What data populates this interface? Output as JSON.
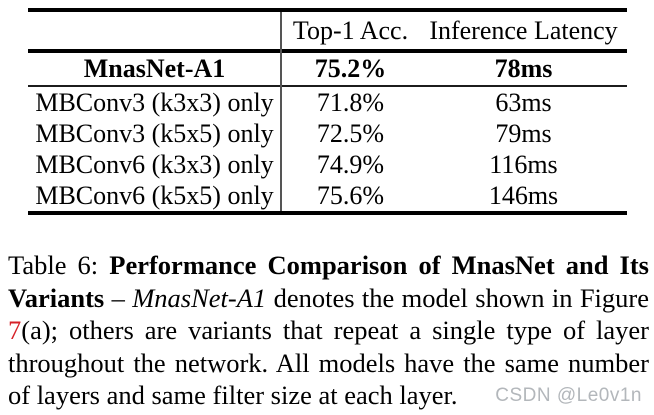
{
  "table": {
    "col_headers": [
      "",
      "Top-1 Acc.",
      "Inference Latency"
    ],
    "highlight_row": {
      "model": "MnasNet-A1",
      "top1_acc": "75.2%",
      "latency": "78ms"
    },
    "variant_rows": [
      {
        "model": "MBConv3 (k3x3) only",
        "top1_acc": "71.8%",
        "latency": "63ms"
      },
      {
        "model": "MBConv3 (k5x5) only",
        "top1_acc": "72.5%",
        "latency": "79ms"
      },
      {
        "model": "MBConv6 (k3x3) only",
        "top1_acc": "74.9%",
        "latency": "116ms"
      },
      {
        "model": "MBConv6 (k5x5) only",
        "top1_acc": "75.6%",
        "latency": "146ms"
      }
    ]
  },
  "caption": {
    "line1": {
      "prefix": "Table 6: ",
      "bold": "Performance Comparison of MnasNet and Its"
    },
    "line2": {
      "bold": "Variants",
      "dash": " – ",
      "italic": "MnasNet-A1",
      "rest": " denotes the model shown in Figure"
    },
    "line3": {
      "figure_ref": "7",
      "rest": "(a); others are variants that repeat a single type of layer"
    },
    "line4": {
      "text": "throughout the network. All models have the same number"
    },
    "line5": {
      "text": "of layers and same filter size at each layer."
    }
  },
  "watermark": {
    "text": "CSDN @Le0v1n"
  },
  "colors": {
    "figure_ref_red": "#d62027",
    "watermark_gray": "#b3b7bb",
    "rule_black": "#000000",
    "divider_gray": "#555555"
  }
}
